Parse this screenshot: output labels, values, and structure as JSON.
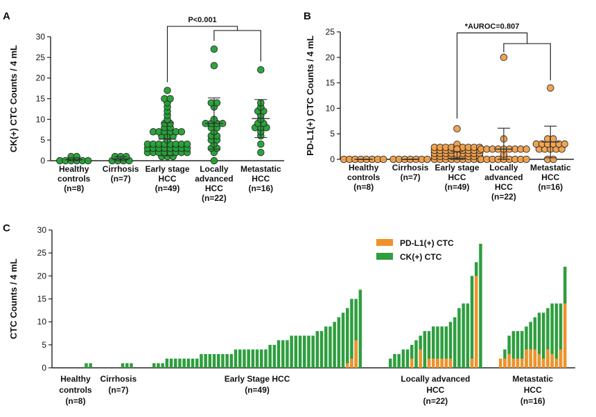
{
  "chart_data": [
    {
      "panel": "A",
      "type": "scatter",
      "ylabel": "CK(+) CTC Counts / 4 mL",
      "ylim": [
        0,
        30
      ],
      "yticks": [
        0,
        5,
        10,
        15,
        20,
        25,
        30
      ],
      "categories": [
        {
          "lines": [
            "Healthy",
            "controls",
            "(n=8)"
          ],
          "points": [
            0,
            0,
            0,
            0,
            0,
            0,
            1,
            1
          ],
          "mean": 0.25,
          "sd": 0.46
        },
        {
          "lines": [
            "Cirrhosis",
            "(n=7)"
          ],
          "points": [
            0,
            0,
            0,
            0,
            1,
            1,
            1
          ],
          "mean": 0.43,
          "sd": 0.53
        },
        {
          "lines": [
            "Early stage",
            "HCC",
            "(n=49)"
          ],
          "points": [
            1,
            1,
            1,
            2,
            2,
            2,
            2,
            2,
            2,
            2,
            2,
            3,
            3,
            3,
            3,
            3,
            3,
            3,
            3,
            4,
            4,
            4,
            4,
            4,
            4,
            4,
            4,
            5,
            6,
            6,
            6,
            7,
            7,
            7,
            7,
            7,
            7,
            8,
            8,
            9,
            9,
            10,
            11,
            12,
            13,
            14,
            15,
            15,
            17
          ],
          "mean": 5.2,
          "sd": 4.0
        },
        {
          "lines": [
            "Locally",
            "advanced",
            "HCC",
            "(n=22)"
          ],
          "points": [
            0,
            2,
            3,
            3,
            4,
            5,
            5,
            6,
            6,
            7,
            8,
            8,
            9,
            9,
            9,
            9,
            10,
            13,
            14,
            14,
            23,
            27
          ],
          "mean": 9.0,
          "sd": 6.2
        },
        {
          "lines": [
            "Metastatic",
            "HCC",
            "(n=16)"
          ],
          "points": [
            2,
            4,
            6,
            7,
            8,
            8,
            8,
            9,
            9,
            10,
            11,
            12,
            12,
            13,
            14,
            22
          ],
          "mean": 10.2,
          "sd": 4.6
        }
      ],
      "color": "#22a033",
      "annotation": "P<0.001"
    },
    {
      "panel": "B",
      "type": "scatter",
      "ylabel": "PD-L1(+) CTC Counts / 4 mL",
      "ylim": [
        0,
        25
      ],
      "yticks": [
        0,
        5,
        10,
        15,
        20,
        25
      ],
      "categories": [
        {
          "lines": [
            "Healthy",
            "controls",
            "(n=8)"
          ],
          "points": [
            0,
            0,
            0,
            0,
            0,
            0,
            0,
            0
          ],
          "mean": 0,
          "sd": 0
        },
        {
          "lines": [
            "Cirrhosis",
            "(n=7)"
          ],
          "points": [
            0,
            0,
            0,
            0,
            0,
            0,
            0
          ],
          "mean": 0,
          "sd": 0
        },
        {
          "lines": [
            "Early stage",
            "HCC",
            "(n=49)"
          ],
          "points": [
            0,
            0,
            0,
            0,
            0,
            0,
            0,
            0,
            0,
            0,
            0,
            0,
            0,
            0,
            0,
            0,
            0,
            0,
            0,
            0,
            0,
            0,
            0,
            0,
            0,
            0,
            0,
            0,
            0,
            0,
            0,
            0,
            0,
            0,
            0,
            0,
            0,
            0,
            0,
            0,
            0,
            0,
            0,
            0,
            0,
            0,
            1,
            2,
            6
          ],
          "mean": 0.2,
          "sd": 1.3
        },
        {
          "lines": [
            "Locally",
            "advanced",
            "HCC",
            "(n=22)"
          ],
          "points": [
            0,
            0,
            0,
            0,
            0,
            0,
            0,
            0,
            0,
            0,
            1,
            2,
            2,
            2,
            2,
            2,
            2,
            2,
            2,
            2,
            4,
            20
          ],
          "mean": 2.0,
          "sd": 4.1
        },
        {
          "lines": [
            "Metastatic",
            "HCC",
            "(n=16)"
          ],
          "points": [
            0,
            0,
            2,
            2,
            2,
            2,
            2,
            3,
            3,
            3,
            3,
            3,
            3,
            4,
            4,
            14
          ],
          "mean": 3.4,
          "sd": 3.1
        }
      ],
      "color": "#f0a04b",
      "annotation": "*AUROC=0.807"
    },
    {
      "panel": "C",
      "type": "bar",
      "stacked": true,
      "ylabel": "CTC Counts / 4 mL",
      "ylim": [
        0,
        30
      ],
      "yticks": [
        0,
        5,
        10,
        15,
        20,
        25,
        30
      ],
      "legend": [
        {
          "label": "PD-L1(+) CTC",
          "color": "#f0922b"
        },
        {
          "label": "CK(+) CTC",
          "color": "#2e9e3e"
        }
      ],
      "groups": [
        {
          "lines": [
            "Healthy",
            "controls",
            "(n=8)"
          ],
          "ck_values": [
            0,
            0,
            0,
            0,
            0,
            0,
            1,
            1
          ],
          "pdl1_values": [
            0,
            0,
            0,
            0,
            0,
            0,
            0,
            0
          ]
        },
        {
          "lines": [
            "Cirrhosis",
            "(n=7)"
          ],
          "ck_values": [
            0,
            0,
            0,
            0,
            1,
            1,
            1
          ],
          "pdl1_values": [
            0,
            0,
            0,
            0,
            0,
            0,
            0
          ]
        },
        {
          "lines": [
            "Early Stage HCC",
            "(n=49)"
          ],
          "ck_values": [
            1,
            1,
            1,
            2,
            2,
            2,
            2,
            2,
            2,
            2,
            2,
            3,
            3,
            3,
            3,
            3,
            3,
            3,
            3,
            4,
            4,
            4,
            4,
            4,
            4,
            4,
            4,
            5,
            5,
            6,
            6,
            6,
            7,
            7,
            7,
            7,
            7,
            7,
            8,
            8,
            9,
            9,
            10,
            11,
            12,
            13,
            15,
            15,
            17
          ],
          "pdl1_values": [
            0,
            0,
            0,
            0,
            0,
            0,
            0,
            0,
            0,
            0,
            0,
            0,
            0,
            0,
            0,
            0,
            0,
            0,
            0,
            0,
            0,
            0,
            0,
            0,
            0,
            0,
            0,
            0,
            0,
            0,
            0,
            0,
            0,
            0,
            0,
            0,
            0,
            0,
            0,
            0,
            0,
            0,
            0,
            0,
            0,
            1,
            2,
            6,
            0
          ]
        },
        {
          "lines": [
            "Locally advanced",
            "HCC",
            "(n=22)"
          ],
          "ck_values": [
            2,
            3,
            3,
            4,
            4,
            5,
            6,
            7,
            8,
            8,
            9,
            9,
            9,
            9,
            10,
            11,
            13,
            14,
            14,
            20,
            23,
            27
          ],
          "pdl1_values": [
            0,
            0,
            0,
            0,
            0,
            2,
            0,
            4,
            0,
            2,
            2,
            2,
            2,
            2,
            2,
            0,
            0,
            0,
            0,
            2,
            20,
            0
          ]
        },
        {
          "lines": [
            "Metastatic",
            "HCC",
            "(n=16)"
          ],
          "ck_values": [
            2,
            4,
            7,
            8,
            8,
            8,
            9,
            10,
            11,
            12,
            12,
            13,
            14,
            14,
            14,
            22
          ],
          "pdl1_values": [
            2,
            2,
            3,
            2,
            2,
            2,
            4,
            4,
            4,
            3,
            2,
            4,
            3,
            2,
            4,
            14
          ]
        }
      ]
    }
  ]
}
